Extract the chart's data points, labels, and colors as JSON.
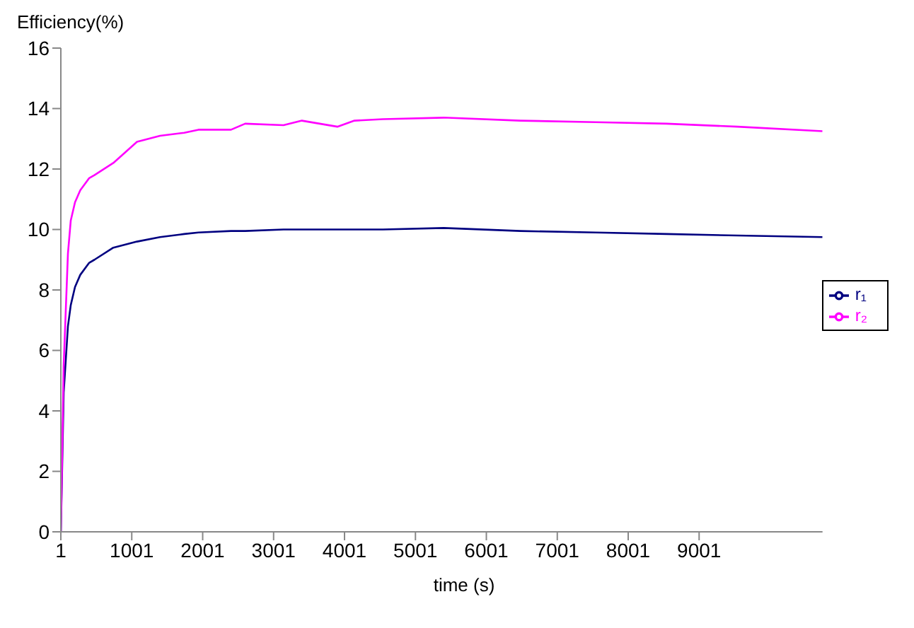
{
  "chart_data": {
    "type": "line",
    "ylabel": "Efficiency(%)",
    "xlabel": "time (s)",
    "x": [
      1,
      41,
      101,
      141,
      201,
      275,
      401,
      475,
      741,
      1075,
      1400,
      1741,
      1941,
      2401,
      2600,
      3141,
      3400,
      3900,
      4141,
      4541,
      5400,
      6481,
      7541,
      8541,
      9541,
      10741
    ],
    "series": [
      {
        "name": "r₁",
        "color": "#000080",
        "values": [
          0,
          4.6,
          6.8,
          7.5,
          8.1,
          8.5,
          8.9,
          9.0,
          9.4,
          9.6,
          9.75,
          9.85,
          9.9,
          9.95,
          9.95,
          10.0,
          10.0,
          10.0,
          10.0,
          10.0,
          10.05,
          9.95,
          9.9,
          9.85,
          9.8,
          9.75
        ]
      },
      {
        "name": "r₂",
        "color": "#ff00ff",
        "values": [
          0,
          5.5,
          9.2,
          10.3,
          10.9,
          11.3,
          11.7,
          11.8,
          12.2,
          12.9,
          13.1,
          13.2,
          13.3,
          13.3,
          13.5,
          13.45,
          13.6,
          13.4,
          13.6,
          13.65,
          13.7,
          13.6,
          13.55,
          13.5,
          13.4,
          13.25
        ]
      }
    ],
    "xlim": [
      1,
      10741
    ],
    "xticks": [
      1,
      1001,
      2001,
      3001,
      4001,
      5001,
      6001,
      7001,
      8001,
      9001
    ],
    "ylim": [
      0,
      16
    ],
    "yticks": [
      0,
      2,
      4,
      6,
      8,
      10,
      12,
      14,
      16
    ],
    "grid": false,
    "legend": "right",
    "marker": "none",
    "line_style": "solid"
  }
}
